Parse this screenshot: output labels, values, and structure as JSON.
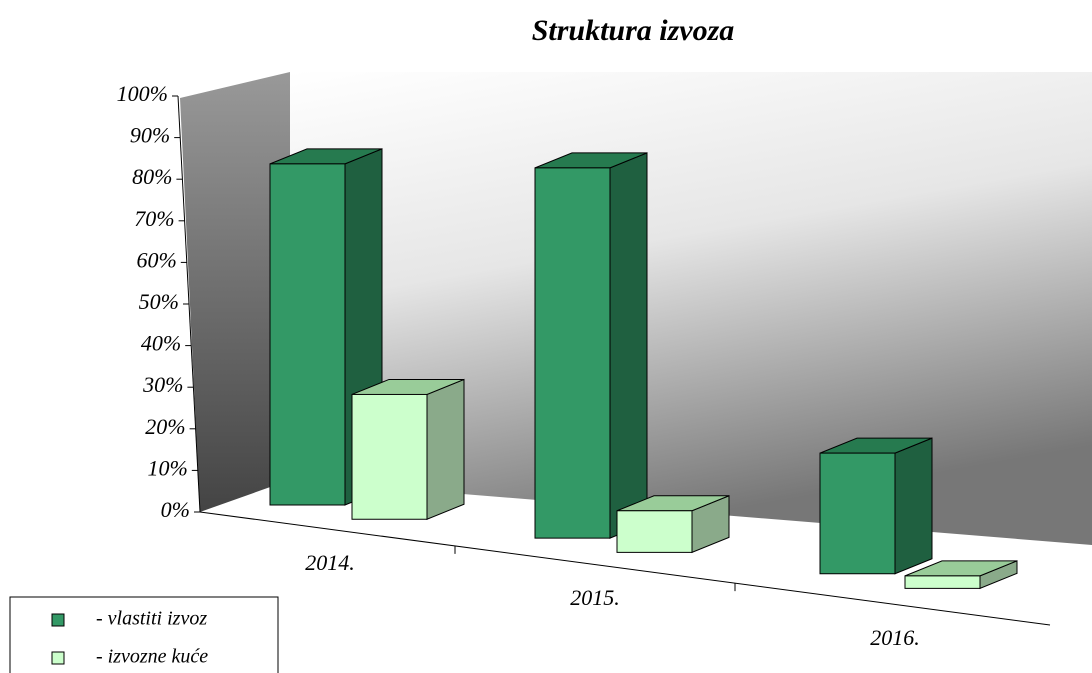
{
  "chart_data": {
    "type": "bar3d",
    "title": "Struktura izvoza",
    "categories": [
      "2014.",
      "2015.",
      "2016."
    ],
    "series": [
      {
        "name": "- vlastiti izvoz",
        "color": "#339966",
        "values": [
          82,
          89,
          29
        ]
      },
      {
        "name": "- izvozne kuće",
        "color": "#ccffcc",
        "values": [
          30,
          10,
          3
        ]
      }
    ],
    "ylim": [
      0,
      100
    ],
    "yticks": [
      {
        "value": 0,
        "label": "0%"
      },
      {
        "value": 10,
        "label": "10%"
      },
      {
        "value": 20,
        "label": "20%"
      },
      {
        "value": 30,
        "label": "30%"
      },
      {
        "value": 40,
        "label": "40%"
      },
      {
        "value": 50,
        "label": "50%"
      },
      {
        "value": 60,
        "label": "60%"
      },
      {
        "value": 70,
        "label": "70%"
      },
      {
        "value": 80,
        "label": "80%"
      },
      {
        "value": 90,
        "label": "90%"
      },
      {
        "value": 100,
        "label": "100%"
      }
    ],
    "legend": "bottom-left"
  }
}
